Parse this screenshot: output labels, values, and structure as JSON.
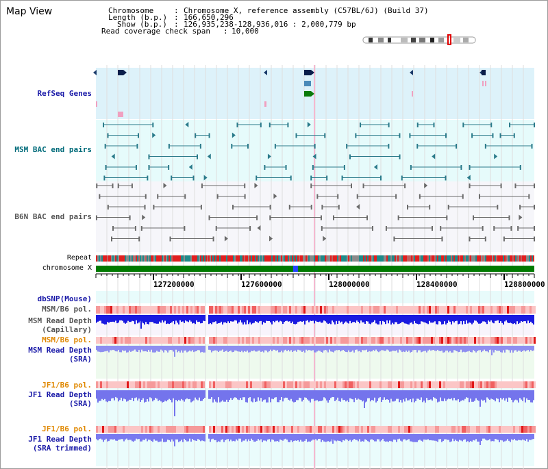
{
  "window": {
    "title": "Map View"
  },
  "info": {
    "chromosome_key": "Chromosome",
    "chromosome_val": "Chromosome X, reference assembly (C57BL/6J) (Build 37)",
    "length_key": "Length (b.p.)",
    "length_val": "166,650,296",
    "show_key": "Show (b.p.)",
    "show_val": "126,935,238-128,936,016 : 2,000,779 bp",
    "span_key": "Read coverage check span",
    "span_val": "10,000"
  },
  "tracks": {
    "refseq": "RefSeq Genes",
    "msm_bac": "MSM BAC end pairs",
    "b6n_bac": "B6N BAC end pairs",
    "repeat": "Repeat",
    "chromosome": "chromosome X",
    "dbsnp": "dbSNP(Mouse)",
    "msm_b6_pol_1": "MSM/B6 pol.",
    "msm_depth_cap_1": "MSM Read Depth",
    "msm_depth_cap_2": "(Capillary)",
    "msm_b6_pol_2": "MSM/B6 pol.",
    "msm_depth_sra_1": "MSM Read Depth",
    "msm_depth_sra_2": "(SRA)",
    "jf1_b6_pol_1": "JF1/B6 pol.",
    "jf1_depth_sra_1": "JF1 Read Depth",
    "jf1_depth_sra_2": "(SRA)",
    "jf1_b6_pol_2": "JF1/B6 pol.",
    "jf1_depth_trim_1": "JF1 Read Depth",
    "jf1_depth_trim_2": "(SRA trimmed)"
  },
  "axis": {
    "ticks": [
      "127200000",
      "127600000",
      "128000000",
      "128400000",
      "128800000"
    ]
  },
  "colors": {
    "label_blue": "#1a1aa8",
    "label_teal": "#006b7a",
    "label_gray": "#555555",
    "label_orange": "#e08800",
    "refseq_bg": "#ddf2fa",
    "msm_bac_bg": "#e6fbfb",
    "b6n_bg": "#f6f6fa",
    "chromosome_band": "#007a00"
  }
}
